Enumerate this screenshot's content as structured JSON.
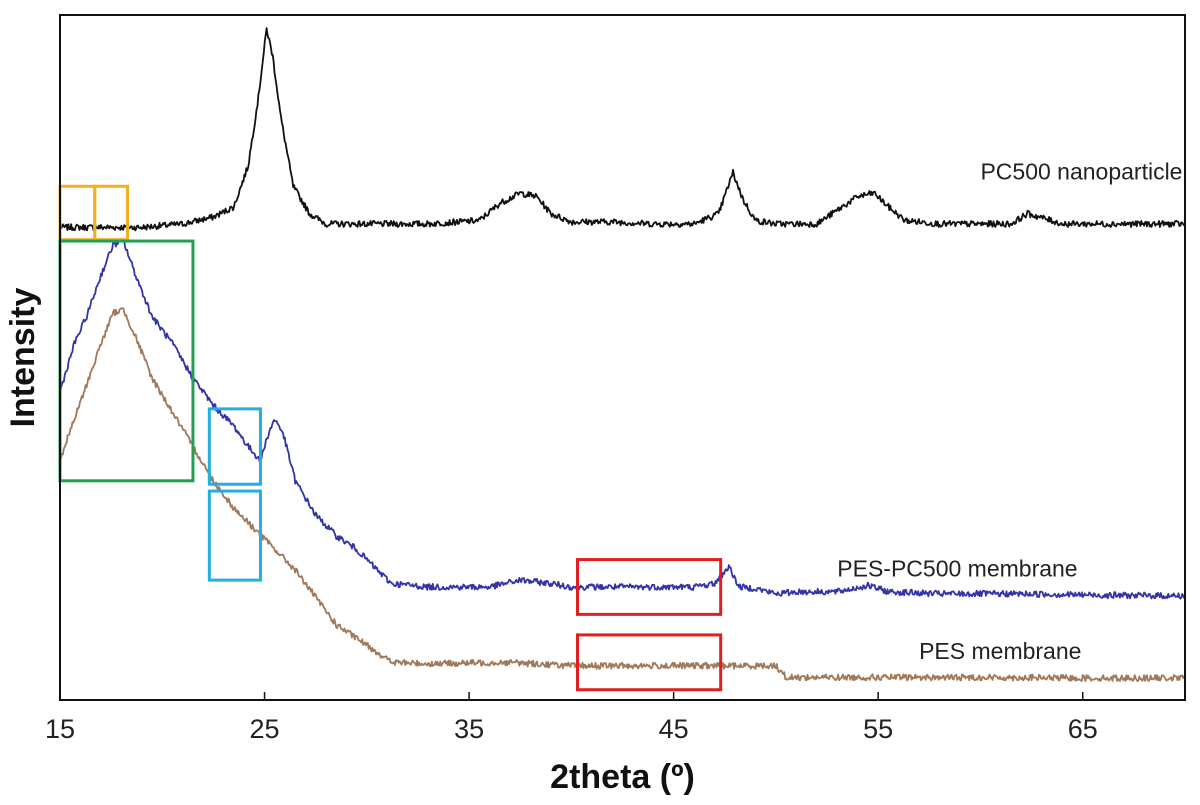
{
  "chart_data": {
    "type": "line",
    "xlabel": "2theta (º)",
    "ylabel": "Intensity",
    "xlim": [
      15,
      70
    ],
    "ylim": [
      0,
      100
    ],
    "x_ticks": [
      15,
      25,
      35,
      45,
      55,
      65
    ],
    "x_tick_labels": [
      "15",
      "25",
      "35",
      "45",
      "55",
      "65"
    ],
    "y_ticks_shown": false,
    "grid": false,
    "legend": "none (series labeled inline at right)",
    "series": [
      {
        "name": "PC500 nanoparticle",
        "color": "#111111",
        "label_at": [
          60,
          76
        ],
        "points": [
          [
            15,
            69
          ],
          [
            17,
            69
          ],
          [
            19,
            69
          ],
          [
            21,
            69.5
          ],
          [
            22.5,
            70.5
          ],
          [
            23.5,
            72
          ],
          [
            24.2,
            78
          ],
          [
            24.7,
            88
          ],
          [
            25.1,
            98
          ],
          [
            25.4,
            94
          ],
          [
            25.8,
            85
          ],
          [
            26.4,
            75
          ],
          [
            27.2,
            71
          ],
          [
            28,
            69.5
          ],
          [
            30,
            69.5
          ],
          [
            33,
            69.5
          ],
          [
            35.5,
            70
          ],
          [
            36.5,
            72.5
          ],
          [
            37.5,
            74
          ],
          [
            38.3,
            73.5
          ],
          [
            39,
            71
          ],
          [
            40,
            69.8
          ],
          [
            42,
            69.8
          ],
          [
            44,
            69.5
          ],
          [
            46,
            69.5
          ],
          [
            47.2,
            71
          ],
          [
            47.9,
            77
          ],
          [
            48.4,
            73
          ],
          [
            49,
            70
          ],
          [
            50,
            69.5
          ],
          [
            52,
            69.5
          ],
          [
            53,
            71.5
          ],
          [
            54,
            73.5
          ],
          [
            54.8,
            74
          ],
          [
            55.5,
            72
          ],
          [
            56.3,
            70
          ],
          [
            58,
            69.5
          ],
          [
            61.5,
            69.5
          ],
          [
            62.3,
            71
          ],
          [
            62.9,
            70.5
          ],
          [
            64,
            69.5
          ],
          [
            67,
            69.5
          ],
          [
            70,
            69.5
          ]
        ]
      },
      {
        "name": "PES-PC500 membrane",
        "color": "#3333aa",
        "label_at": [
          53,
          18
        ],
        "points": [
          [
            15,
            45
          ],
          [
            15.7,
            52
          ],
          [
            16.3,
            56
          ],
          [
            17,
            62
          ],
          [
            17.6,
            66.5
          ],
          [
            18.1,
            67
          ],
          [
            18.7,
            62
          ],
          [
            19.5,
            56
          ],
          [
            20.5,
            52
          ],
          [
            21.5,
            47
          ],
          [
            22.5,
            43
          ],
          [
            23.5,
            40
          ],
          [
            24.2,
            37
          ],
          [
            24.8,
            35
          ],
          [
            25.2,
            39
          ],
          [
            25.5,
            41
          ],
          [
            25.9,
            39
          ],
          [
            26.5,
            32
          ],
          [
            27.5,
            27
          ],
          [
            28.5,
            24
          ],
          [
            29.5,
            22
          ],
          [
            30.5,
            19
          ],
          [
            31.2,
            17
          ],
          [
            33,
            16.5
          ],
          [
            36,
            16.5
          ],
          [
            37.5,
            17.5
          ],
          [
            39,
            17
          ],
          [
            40,
            16.5
          ],
          [
            43,
            16.5
          ],
          [
            46,
            16.5
          ],
          [
            47,
            17
          ],
          [
            47.7,
            19.5
          ],
          [
            48.2,
            16.5
          ],
          [
            49,
            16.3
          ],
          [
            50,
            15.5
          ],
          [
            51,
            15.8
          ],
          [
            53,
            15.8
          ],
          [
            54.5,
            16.7
          ],
          [
            55.5,
            15.8
          ],
          [
            58,
            15.5
          ],
          [
            62,
            15.5
          ],
          [
            66,
            15.3
          ],
          [
            70,
            15.2
          ]
        ]
      },
      {
        "name": "PES membrane",
        "color": "#a0785a",
        "label_at": [
          57,
          6
        ],
        "points": [
          [
            15,
            35
          ],
          [
            15.7,
            41
          ],
          [
            16.3,
            46
          ],
          [
            17,
            52
          ],
          [
            17.6,
            56.5
          ],
          [
            18.1,
            57
          ],
          [
            18.7,
            53
          ],
          [
            19.5,
            47
          ],
          [
            20.5,
            42
          ],
          [
            21.5,
            37
          ],
          [
            22.5,
            32
          ],
          [
            23.5,
            28
          ],
          [
            24.5,
            25
          ],
          [
            25.5,
            22
          ],
          [
            26.5,
            19
          ],
          [
            27.5,
            15
          ],
          [
            28.5,
            11
          ],
          [
            29.5,
            9
          ],
          [
            30.5,
            7
          ],
          [
            31.2,
            5.5
          ],
          [
            33,
            5.3
          ],
          [
            37,
            5.5
          ],
          [
            40,
            5
          ],
          [
            43,
            5
          ],
          [
            46,
            5
          ],
          [
            50,
            5
          ],
          [
            50.5,
            3.3
          ],
          [
            55,
            3.3
          ],
          [
            60,
            3.3
          ],
          [
            65,
            3.2
          ],
          [
            70,
            3.2
          ]
        ]
      }
    ],
    "annotations": [
      {
        "type": "box",
        "color": "#f0b020",
        "x": [
          15,
          16.7
        ],
        "y": [
          67.2,
          75
        ]
      },
      {
        "type": "box",
        "color": "#f0b020",
        "x": [
          16.7,
          18.3
        ],
        "y": [
          67.2,
          75
        ]
      },
      {
        "type": "box",
        "color": "#20a050",
        "x": [
          15,
          21.5
        ],
        "y": [
          32,
          67
        ]
      },
      {
        "type": "box",
        "color": "#20b0e0",
        "x": [
          22.3,
          24.8
        ],
        "y": [
          31.5,
          42.5
        ]
      },
      {
        "type": "box",
        "color": "#20b0e0",
        "x": [
          22.3,
          24.8
        ],
        "y": [
          17.5,
          30.5
        ]
      },
      {
        "type": "box",
        "color": "#e02020",
        "x": [
          40.3,
          47.3
        ],
        "y": [
          12.5,
          20.5
        ]
      },
      {
        "type": "box",
        "color": "#e02020",
        "x": [
          40.3,
          47.3
        ],
        "y": [
          1.5,
          9.5
        ]
      }
    ]
  }
}
